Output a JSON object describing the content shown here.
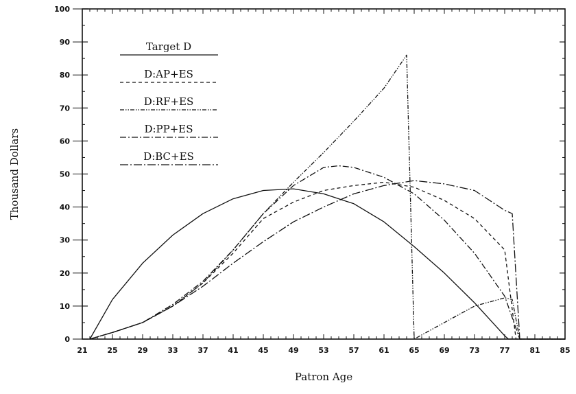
{
  "chart_data": {
    "type": "line",
    "title": "",
    "xlabel": "Patron Age",
    "ylabel": "Thousand Dollars",
    "xlim": [
      21,
      85
    ],
    "ylim": [
      0,
      100
    ],
    "x_ticks": [
      "21",
      "25",
      "29",
      "33",
      "37",
      "41",
      "45",
      "49",
      "53",
      "57",
      "61",
      "65",
      "69",
      "73",
      "77",
      "81",
      "85"
    ],
    "y_ticks": [
      "0",
      "10",
      "20",
      "30",
      "40",
      "50",
      "60",
      "70",
      "80",
      "90",
      "100"
    ],
    "grid": false,
    "legend_position": "top-left",
    "series": [
      {
        "name": "Target D",
        "dash": "solid",
        "points": [
          [
            22,
            0
          ],
          [
            25,
            12
          ],
          [
            29,
            23
          ],
          [
            33,
            31.5
          ],
          [
            37,
            38
          ],
          [
            41,
            42.5
          ],
          [
            45,
            45
          ],
          [
            49,
            45.5
          ],
          [
            53,
            44
          ],
          [
            57,
            41
          ],
          [
            61,
            35.5
          ],
          [
            65,
            28
          ],
          [
            69,
            20
          ],
          [
            73,
            11
          ],
          [
            77,
            1
          ],
          [
            77.5,
            0
          ],
          [
            85,
            0
          ]
        ]
      },
      {
        "name": "D:AP+ES",
        "dash": "short-dash",
        "points": [
          [
            22,
            0
          ],
          [
            25,
            2
          ],
          [
            29,
            5
          ],
          [
            33,
            10
          ],
          [
            37,
            17
          ],
          [
            41,
            26
          ],
          [
            45,
            36.5
          ],
          [
            49,
            41.5
          ],
          [
            53,
            45
          ],
          [
            57,
            46.5
          ],
          [
            61,
            47.5
          ],
          [
            65,
            46
          ],
          [
            69,
            42
          ],
          [
            73,
            36.5
          ],
          [
            77,
            27
          ],
          [
            78.5,
            0
          ],
          [
            85,
            0
          ]
        ]
      },
      {
        "name": "D:RF+ES",
        "dash": "dash-dot-dot",
        "points": [
          [
            22,
            0
          ],
          [
            25,
            2
          ],
          [
            29,
            5
          ],
          [
            33,
            10
          ],
          [
            37,
            17
          ],
          [
            41,
            27
          ],
          [
            45,
            38
          ],
          [
            49,
            47.5
          ],
          [
            53,
            56.5
          ],
          [
            57,
            66
          ],
          [
            61,
            76
          ],
          [
            64,
            86
          ],
          [
            65,
            0
          ],
          [
            69,
            5
          ],
          [
            73,
            10
          ],
          [
            77,
            12.5
          ],
          [
            78,
            12
          ],
          [
            79,
            0
          ],
          [
            85,
            0
          ]
        ]
      },
      {
        "name": "D:PP+ES",
        "dash": "dash-dot",
        "points": [
          [
            22,
            0
          ],
          [
            25,
            2
          ],
          [
            29,
            5
          ],
          [
            33,
            10.5
          ],
          [
            37,
            17.5
          ],
          [
            41,
            27
          ],
          [
            45,
            38
          ],
          [
            49,
            46.5
          ],
          [
            53,
            52
          ],
          [
            55,
            52.5
          ],
          [
            57,
            52
          ],
          [
            61,
            49
          ],
          [
            65,
            44
          ],
          [
            69,
            36
          ],
          [
            73,
            26
          ],
          [
            77,
            13
          ],
          [
            79,
            0
          ],
          [
            85,
            0
          ]
        ]
      },
      {
        "name": "D:BC+ES",
        "dash": "long-dash-dot",
        "points": [
          [
            22,
            0
          ],
          [
            25,
            2
          ],
          [
            29,
            5
          ],
          [
            33,
            10
          ],
          [
            37,
            16
          ],
          [
            41,
            23
          ],
          [
            45,
            29.5
          ],
          [
            49,
            35.5
          ],
          [
            53,
            40
          ],
          [
            57,
            44
          ],
          [
            61,
            46.5
          ],
          [
            65,
            48
          ],
          [
            69,
            47
          ],
          [
            73,
            45
          ],
          [
            77,
            39
          ],
          [
            78,
            38
          ],
          [
            79,
            0
          ],
          [
            85,
            0
          ]
        ]
      }
    ]
  }
}
